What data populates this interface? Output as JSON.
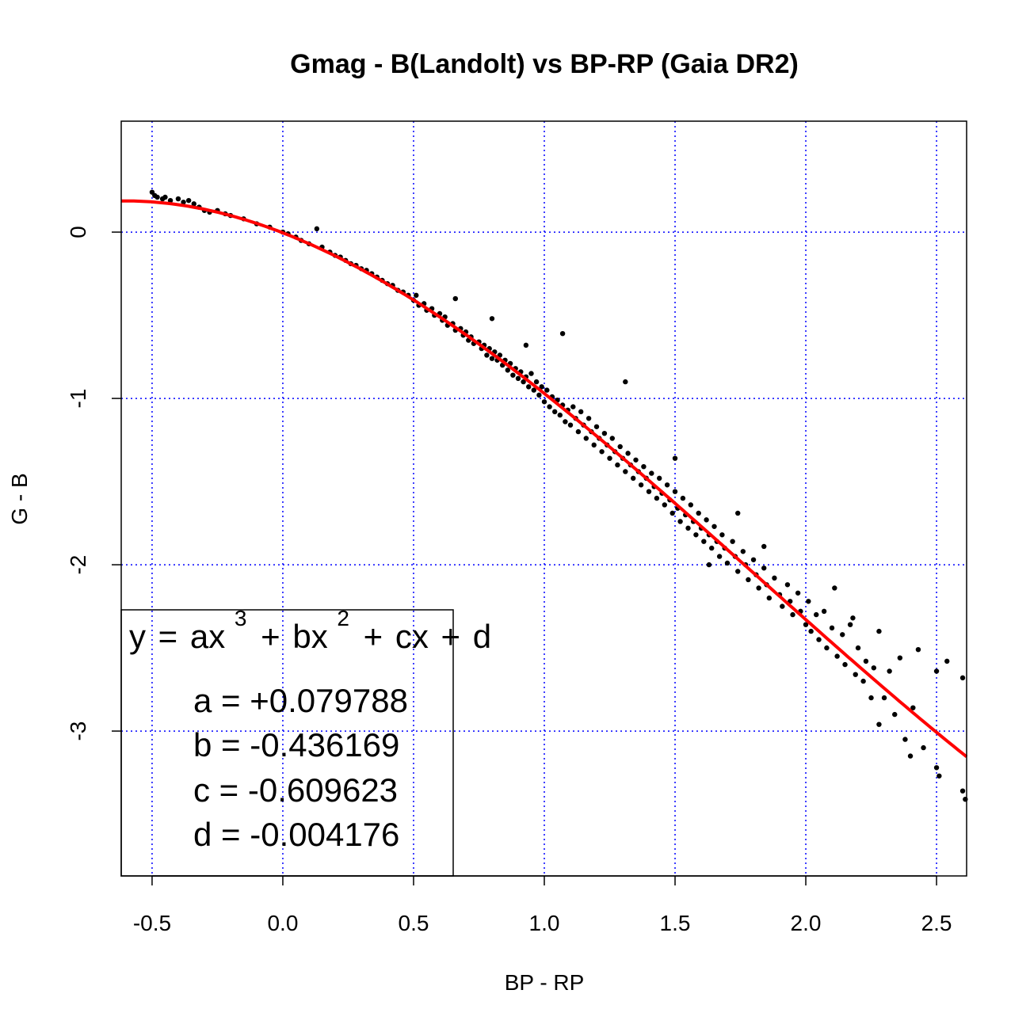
{
  "chart_data": {
    "type": "scatter",
    "title": "Gmag - B(Landolt) vs BP-RP (Gaia DR2)",
    "xlabel": "BP - RP",
    "ylabel": "G - B",
    "xlim": [
      -0.618,
      2.615
    ],
    "ylim": [
      -3.871,
      0.667
    ],
    "grid": true,
    "grid_color": "#0000ff",
    "x_ticks": [
      -0.5,
      0.0,
      0.5,
      1.0,
      1.5,
      2.0,
      2.5
    ],
    "x_tick_labels": [
      "-0.5",
      "0.0",
      "0.5",
      "1.0",
      "1.5",
      "2.0",
      "2.5"
    ],
    "y_ticks": [
      0,
      -1,
      -2,
      -3
    ],
    "y_tick_labels": [
      "0",
      "-1",
      "-2",
      "-3"
    ],
    "point_color": "#000000",
    "fit": {
      "color": "#ff0000",
      "coefficients": {
        "a": 0.079788,
        "b": -0.436169,
        "c": -0.609623,
        "d": -0.004176
      }
    },
    "legend": {
      "placement": "bottom-left",
      "equation": {
        "y": "y",
        "eq": "=",
        "ax": "ax",
        "p3": "3",
        "plus1": "+",
        "bx": "bx",
        "p2": "2",
        "plus2": "+",
        "cx": "cx",
        "plus3": "+",
        "d": "d"
      },
      "lines": [
        "a = +0.079788",
        "b = -0.436169",
        "c = -0.609623",
        "d = -0.004176"
      ]
    },
    "points": [
      [
        -0.5,
        0.24
      ],
      [
        -0.49,
        0.22
      ],
      [
        -0.48,
        0.21
      ],
      [
        -0.46,
        0.2
      ],
      [
        -0.45,
        0.21
      ],
      [
        -0.43,
        0.19
      ],
      [
        -0.4,
        0.2
      ],
      [
        -0.38,
        0.18
      ],
      [
        -0.36,
        0.19
      ],
      [
        -0.34,
        0.17
      ],
      [
        -0.32,
        0.15
      ],
      [
        -0.3,
        0.13
      ],
      [
        -0.28,
        0.12
      ],
      [
        -0.25,
        0.13
      ],
      [
        -0.22,
        0.11
      ],
      [
        -0.2,
        0.1
      ],
      [
        -0.15,
        0.08
      ],
      [
        -0.1,
        0.05
      ],
      [
        -0.05,
        0.03
      ],
      [
        0.0,
        0.0
      ],
      [
        0.02,
        -0.01
      ],
      [
        0.05,
        -0.03
      ],
      [
        0.07,
        -0.05
      ],
      [
        0.1,
        -0.07
      ],
      [
        0.13,
        0.02
      ],
      [
        0.15,
        -0.09
      ],
      [
        0.18,
        -0.12
      ],
      [
        0.2,
        -0.14
      ],
      [
        0.22,
        -0.15
      ],
      [
        0.24,
        -0.17
      ],
      [
        0.26,
        -0.19
      ],
      [
        0.28,
        -0.2
      ],
      [
        0.3,
        -0.22
      ],
      [
        0.32,
        -0.23
      ],
      [
        0.34,
        -0.25
      ],
      [
        0.36,
        -0.27
      ],
      [
        0.38,
        -0.29
      ],
      [
        0.4,
        -0.31
      ],
      [
        0.42,
        -0.32
      ],
      [
        0.44,
        -0.35
      ],
      [
        0.46,
        -0.36
      ],
      [
        0.48,
        -0.38
      ],
      [
        0.5,
        -0.41
      ],
      [
        0.51,
        -0.38
      ],
      [
        0.52,
        -0.44
      ],
      [
        0.54,
        -0.43
      ],
      [
        0.55,
        -0.47
      ],
      [
        0.57,
        -0.46
      ],
      [
        0.58,
        -0.5
      ],
      [
        0.6,
        -0.49
      ],
      [
        0.61,
        -0.53
      ],
      [
        0.62,
        -0.51
      ],
      [
        0.63,
        -0.56
      ],
      [
        0.65,
        -0.55
      ],
      [
        0.66,
        -0.4
      ],
      [
        0.66,
        -0.59
      ],
      [
        0.68,
        -0.58
      ],
      [
        0.69,
        -0.62
      ],
      [
        0.7,
        -0.6
      ],
      [
        0.71,
        -0.65
      ],
      [
        0.72,
        -0.63
      ],
      [
        0.73,
        -0.67
      ],
      [
        0.75,
        -0.66
      ],
      [
        0.76,
        -0.7
      ],
      [
        0.77,
        -0.68
      ],
      [
        0.78,
        -0.74
      ],
      [
        0.79,
        -0.7
      ],
      [
        0.8,
        -0.52
      ],
      [
        0.8,
        -0.76
      ],
      [
        0.81,
        -0.72
      ],
      [
        0.82,
        -0.77
      ],
      [
        0.83,
        -0.74
      ],
      [
        0.84,
        -0.8
      ],
      [
        0.85,
        -0.77
      ],
      [
        0.86,
        -0.83
      ],
      [
        0.87,
        -0.79
      ],
      [
        0.88,
        -0.86
      ],
      [
        0.89,
        -0.82
      ],
      [
        0.9,
        -0.88
      ],
      [
        0.91,
        -0.84
      ],
      [
        0.92,
        -0.9
      ],
      [
        0.93,
        -0.68
      ],
      [
        0.93,
        -0.87
      ],
      [
        0.94,
        -0.93
      ],
      [
        0.95,
        -0.85
      ],
      [
        0.96,
        -0.95
      ],
      [
        0.97,
        -0.9
      ],
      [
        0.98,
        -0.98
      ],
      [
        0.99,
        -0.93
      ],
      [
        1.0,
        -1.02
      ],
      [
        1.01,
        -0.95
      ],
      [
        1.02,
        -1.05
      ],
      [
        1.03,
        -0.99
      ],
      [
        1.04,
        -1.08
      ],
      [
        1.05,
        -1.01
      ],
      [
        1.06,
        -1.1
      ],
      [
        1.07,
        -0.61
      ],
      [
        1.07,
        -1.04
      ],
      [
        1.08,
        -1.14
      ],
      [
        1.09,
        -1.07
      ],
      [
        1.1,
        -1.16
      ],
      [
        1.11,
        -1.05
      ],
      [
        1.12,
        -1.12
      ],
      [
        1.13,
        -1.2
      ],
      [
        1.14,
        -1.08
      ],
      [
        1.15,
        -1.16
      ],
      [
        1.16,
        -1.24
      ],
      [
        1.17,
        -1.12
      ],
      [
        1.18,
        -1.2
      ],
      [
        1.19,
        -1.28
      ],
      [
        1.2,
        -1.17
      ],
      [
        1.21,
        -1.24
      ],
      [
        1.22,
        -1.32
      ],
      [
        1.23,
        -1.21
      ],
      [
        1.24,
        -1.28
      ],
      [
        1.25,
        -1.36
      ],
      [
        1.26,
        -1.24
      ],
      [
        1.27,
        -1.32
      ],
      [
        1.28,
        -1.4
      ],
      [
        1.29,
        -1.29
      ],
      [
        1.3,
        -1.36
      ],
      [
        1.31,
        -0.9
      ],
      [
        1.31,
        -1.44
      ],
      [
        1.32,
        -1.33
      ],
      [
        1.33,
        -1.4
      ],
      [
        1.34,
        -1.48
      ],
      [
        1.35,
        -1.37
      ],
      [
        1.36,
        -1.44
      ],
      [
        1.37,
        -1.52
      ],
      [
        1.38,
        -1.41
      ],
      [
        1.39,
        -1.48
      ],
      [
        1.4,
        -1.56
      ],
      [
        1.41,
        -1.45
      ],
      [
        1.42,
        -1.53
      ],
      [
        1.43,
        -1.6
      ],
      [
        1.44,
        -1.48
      ],
      [
        1.45,
        -1.57
      ],
      [
        1.46,
        -1.64
      ],
      [
        1.47,
        -1.52
      ],
      [
        1.48,
        -1.61
      ],
      [
        1.49,
        -1.69
      ],
      [
        1.5,
        -1.36
      ],
      [
        1.5,
        -1.56
      ],
      [
        1.51,
        -1.66
      ],
      [
        1.52,
        -1.74
      ],
      [
        1.53,
        -1.6
      ],
      [
        1.54,
        -1.7
      ],
      [
        1.55,
        -1.78
      ],
      [
        1.56,
        -1.64
      ],
      [
        1.57,
        -1.74
      ],
      [
        1.58,
        -1.82
      ],
      [
        1.59,
        -1.69
      ],
      [
        1.6,
        -1.78
      ],
      [
        1.61,
        -1.86
      ],
      [
        1.62,
        -1.73
      ],
      [
        1.63,
        -2.0
      ],
      [
        1.63,
        -1.82
      ],
      [
        1.64,
        -1.9
      ],
      [
        1.65,
        -1.77
      ],
      [
        1.66,
        -1.86
      ],
      [
        1.67,
        -1.95
      ],
      [
        1.68,
        -1.82
      ],
      [
        1.69,
        -1.9
      ],
      [
        1.7,
        -1.99
      ],
      [
        1.72,
        -1.86
      ],
      [
        1.73,
        -1.95
      ],
      [
        1.74,
        -1.69
      ],
      [
        1.74,
        -2.04
      ],
      [
        1.76,
        -1.92
      ],
      [
        1.77,
        -2.0
      ],
      [
        1.78,
        -2.09
      ],
      [
        1.8,
        -1.97
      ],
      [
        1.81,
        -2.06
      ],
      [
        1.82,
        -2.14
      ],
      [
        1.84,
        -1.89
      ],
      [
        1.84,
        -2.02
      ],
      [
        1.85,
        -2.12
      ],
      [
        1.86,
        -2.2
      ],
      [
        1.88,
        -2.08
      ],
      [
        1.9,
        -2.18
      ],
      [
        1.91,
        -2.25
      ],
      [
        1.93,
        -2.12
      ],
      [
        1.94,
        -2.22
      ],
      [
        1.95,
        -2.3
      ],
      [
        1.97,
        -2.17
      ],
      [
        1.98,
        -2.28
      ],
      [
        2.0,
        -2.36
      ],
      [
        2.01,
        -2.22
      ],
      [
        2.02,
        -2.4
      ],
      [
        2.04,
        -2.3
      ],
      [
        2.05,
        -2.45
      ],
      [
        2.07,
        -2.28
      ],
      [
        2.08,
        -2.5
      ],
      [
        2.1,
        -2.38
      ],
      [
        2.11,
        -2.14
      ],
      [
        2.12,
        -2.55
      ],
      [
        2.14,
        -2.42
      ],
      [
        2.15,
        -2.6
      ],
      [
        2.17,
        -2.36
      ],
      [
        2.18,
        -2.32
      ],
      [
        2.19,
        -2.66
      ],
      [
        2.2,
        -2.5
      ],
      [
        2.22,
        -2.7
      ],
      [
        2.23,
        -2.58
      ],
      [
        2.25,
        -2.8
      ],
      [
        2.26,
        -2.62
      ],
      [
        2.28,
        -2.4
      ],
      [
        2.28,
        -2.96
      ],
      [
        2.3,
        -2.8
      ],
      [
        2.32,
        -2.64
      ],
      [
        2.34,
        -2.9
      ],
      [
        2.36,
        -2.56
      ],
      [
        2.38,
        -3.05
      ],
      [
        2.4,
        -3.15
      ],
      [
        2.41,
        -2.86
      ],
      [
        2.43,
        -2.51
      ],
      [
        2.45,
        -3.1
      ],
      [
        2.5,
        -2.64
      ],
      [
        2.5,
        -3.22
      ],
      [
        2.51,
        -3.27
      ],
      [
        2.54,
        -2.58
      ],
      [
        2.6,
        -2.68
      ],
      [
        2.6,
        -3.36
      ],
      [
        2.61,
        -3.41
      ]
    ]
  }
}
